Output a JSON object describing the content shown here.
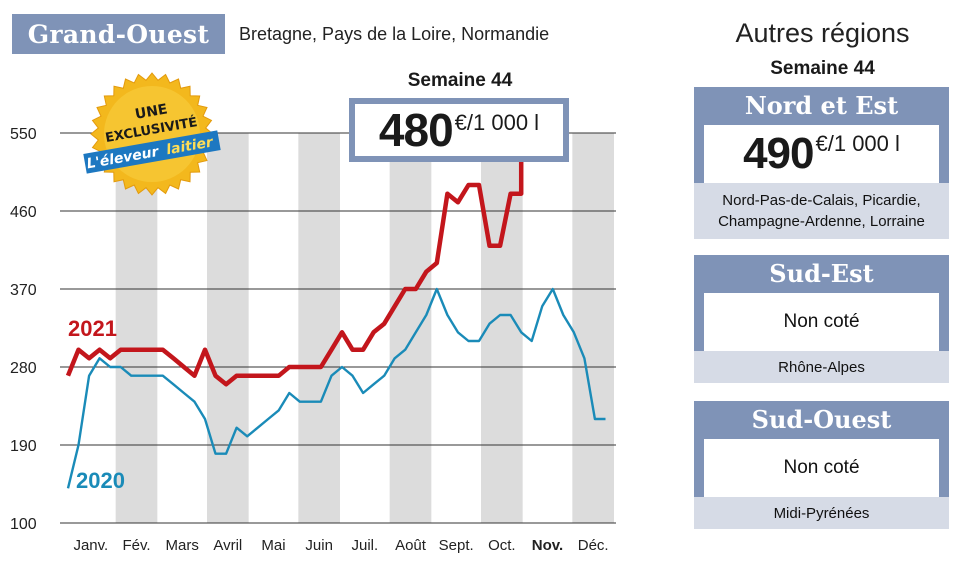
{
  "header": {
    "region": "Grand-Ouest",
    "subregions": "Bretagne, Pays de la Loire, Normandie"
  },
  "badge": {
    "line1": "UNE",
    "line2": "EXCLUSIVITÉ",
    "brand_a": "L'éleveur",
    "brand_b": "laitier"
  },
  "price_callout": {
    "week": "Semaine 44",
    "value": "480",
    "unit": "€/1 000 l"
  },
  "side": {
    "title": "Autres régions",
    "week": "Semaine 44",
    "panels": [
      {
        "name": "Nord et Est",
        "value": "490",
        "unit": "€/1 000 l",
        "sub": [
          "Nord-Pas-de-Calais, Picardie,",
          "Champagne-Ardenne, Lorraine"
        ]
      },
      {
        "name": "Sud-Est",
        "value": "Non coté",
        "sub": [
          "Rhône-Alpes"
        ]
      },
      {
        "name": "Sud-Ouest",
        "value": "Non coté",
        "sub": [
          "Midi-Pyrénées"
        ]
      }
    ]
  },
  "colors": {
    "accent": "#7f93b7",
    "series_2021": "#c3161c",
    "series_2020": "#1a8bb8",
    "band": "#dcdcdc"
  },
  "chart_data": {
    "type": "line",
    "title": "",
    "xlabel": "",
    "ylabel": "",
    "ylim": [
      100,
      550
    ],
    "yticks": [
      100,
      190,
      280,
      370,
      460,
      550
    ],
    "xlim": [
      1,
      53
    ],
    "months": [
      "Janv.",
      "Fév.",
      "Mars",
      "Avril",
      "Mai",
      "Juin",
      "Juil.",
      "Août",
      "Sept.",
      "Oct.",
      "Nov.",
      "Déc."
    ],
    "highlight_month": "Nov.",
    "grid": true,
    "series": [
      {
        "name": "2021",
        "x": [
          1,
          2,
          3,
          4,
          5,
          6,
          7,
          8,
          9,
          10,
          11,
          12,
          13,
          14,
          15,
          16,
          17,
          18,
          19,
          20,
          21,
          22,
          23,
          24,
          25,
          26,
          27,
          28,
          29,
          30,
          31,
          32,
          33,
          34,
          35,
          36,
          37,
          38,
          39,
          40,
          41,
          42,
          43,
          44,
          44
        ],
        "values": [
          270,
          300,
          290,
          300,
          290,
          300,
          300,
          300,
          300,
          300,
          290,
          280,
          270,
          300,
          270,
          260,
          270,
          270,
          270,
          270,
          270,
          280,
          280,
          280,
          280,
          300,
          320,
          300,
          300,
          320,
          330,
          350,
          370,
          370,
          390,
          400,
          480,
          470,
          490,
          490,
          420,
          420,
          480,
          480,
          520
        ]
      },
      {
        "name": "2020",
        "x": [
          1,
          2,
          3,
          4,
          5,
          6,
          7,
          8,
          9,
          10,
          11,
          12,
          13,
          14,
          15,
          16,
          17,
          18,
          19,
          20,
          21,
          22,
          23,
          24,
          25,
          26,
          27,
          28,
          29,
          30,
          31,
          32,
          33,
          34,
          35,
          36,
          37,
          38,
          39,
          40,
          41,
          42,
          43,
          44,
          45,
          46,
          47,
          48,
          49,
          50,
          51,
          52
        ],
        "values": [
          140,
          190,
          270,
          290,
          280,
          280,
          270,
          270,
          270,
          270,
          260,
          250,
          240,
          220,
          180,
          180,
          210,
          200,
          210,
          220,
          230,
          250,
          240,
          240,
          240,
          270,
          280,
          270,
          250,
          260,
          270,
          290,
          300,
          320,
          340,
          370,
          340,
          320,
          310,
          310,
          330,
          340,
          340,
          320,
          310,
          350,
          370,
          340,
          320,
          290,
          220,
          220
        ]
      }
    ]
  }
}
